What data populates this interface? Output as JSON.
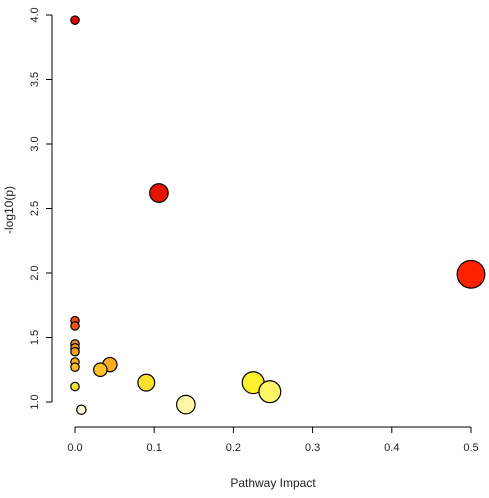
{
  "chart_data": {
    "type": "scatter",
    "title": "",
    "xlabel": "Pathway Impact",
    "ylabel": "-log10(p)",
    "xlim": [
      -0.01,
      0.52
    ],
    "ylim": [
      0.85,
      4.05
    ],
    "x_ticks": [
      0.0,
      0.1,
      0.2,
      0.3,
      0.4,
      0.5
    ],
    "x_tick_labels": [
      "0.0",
      "0.1",
      "0.2",
      "0.3",
      "0.4",
      "0.5"
    ],
    "y_ticks": [
      1.0,
      1.5,
      2.0,
      2.5,
      3.0,
      3.5,
      4.0
    ],
    "y_tick_labels": [
      "1.0",
      "1.5",
      "2.0",
      "2.5",
      "3.0",
      "3.5",
      "4.0"
    ],
    "grid": false,
    "legend": "none",
    "points": [
      {
        "x": 0.0,
        "y": 3.96,
        "size": 1.0,
        "color": "#e20000"
      },
      {
        "x": 0.106,
        "y": 2.62,
        "size": 2.2,
        "color": "#e61500"
      },
      {
        "x": 0.5,
        "y": 1.99,
        "size": 3.3,
        "color": "#ff2200"
      },
      {
        "x": 0.0,
        "y": 1.63,
        "size": 1.0,
        "color": "#ee4a14"
      },
      {
        "x": 0.0,
        "y": 1.59,
        "size": 1.0,
        "color": "#ee5519"
      },
      {
        "x": 0.0,
        "y": 1.45,
        "size": 1.0,
        "color": "#f5901e"
      },
      {
        "x": 0.0,
        "y": 1.42,
        "size": 1.0,
        "color": "#f5981f"
      },
      {
        "x": 0.0,
        "y": 1.39,
        "size": 1.0,
        "color": "#f5a023"
      },
      {
        "x": 0.0,
        "y": 1.31,
        "size": 1.0,
        "color": "#f8b023"
      },
      {
        "x": 0.0,
        "y": 1.27,
        "size": 1.0,
        "color": "#f9bc22"
      },
      {
        "x": 0.044,
        "y": 1.29,
        "size": 1.7,
        "color": "#f9ae22"
      },
      {
        "x": 0.032,
        "y": 1.25,
        "size": 1.6,
        "color": "#fac226"
      },
      {
        "x": 0.09,
        "y": 1.15,
        "size": 2.0,
        "color": "#fde02e"
      },
      {
        "x": 0.0,
        "y": 1.12,
        "size": 1.0,
        "color": "#fce42c"
      },
      {
        "x": 0.225,
        "y": 1.15,
        "size": 2.6,
        "color": "#fef22c"
      },
      {
        "x": 0.246,
        "y": 1.08,
        "size": 2.6,
        "color": "#fdf468"
      },
      {
        "x": 0.14,
        "y": 0.98,
        "size": 2.2,
        "color": "#fef8a6"
      },
      {
        "x": 0.008,
        "y": 0.94,
        "size": 1.1,
        "color": "#fdfad8"
      }
    ]
  }
}
